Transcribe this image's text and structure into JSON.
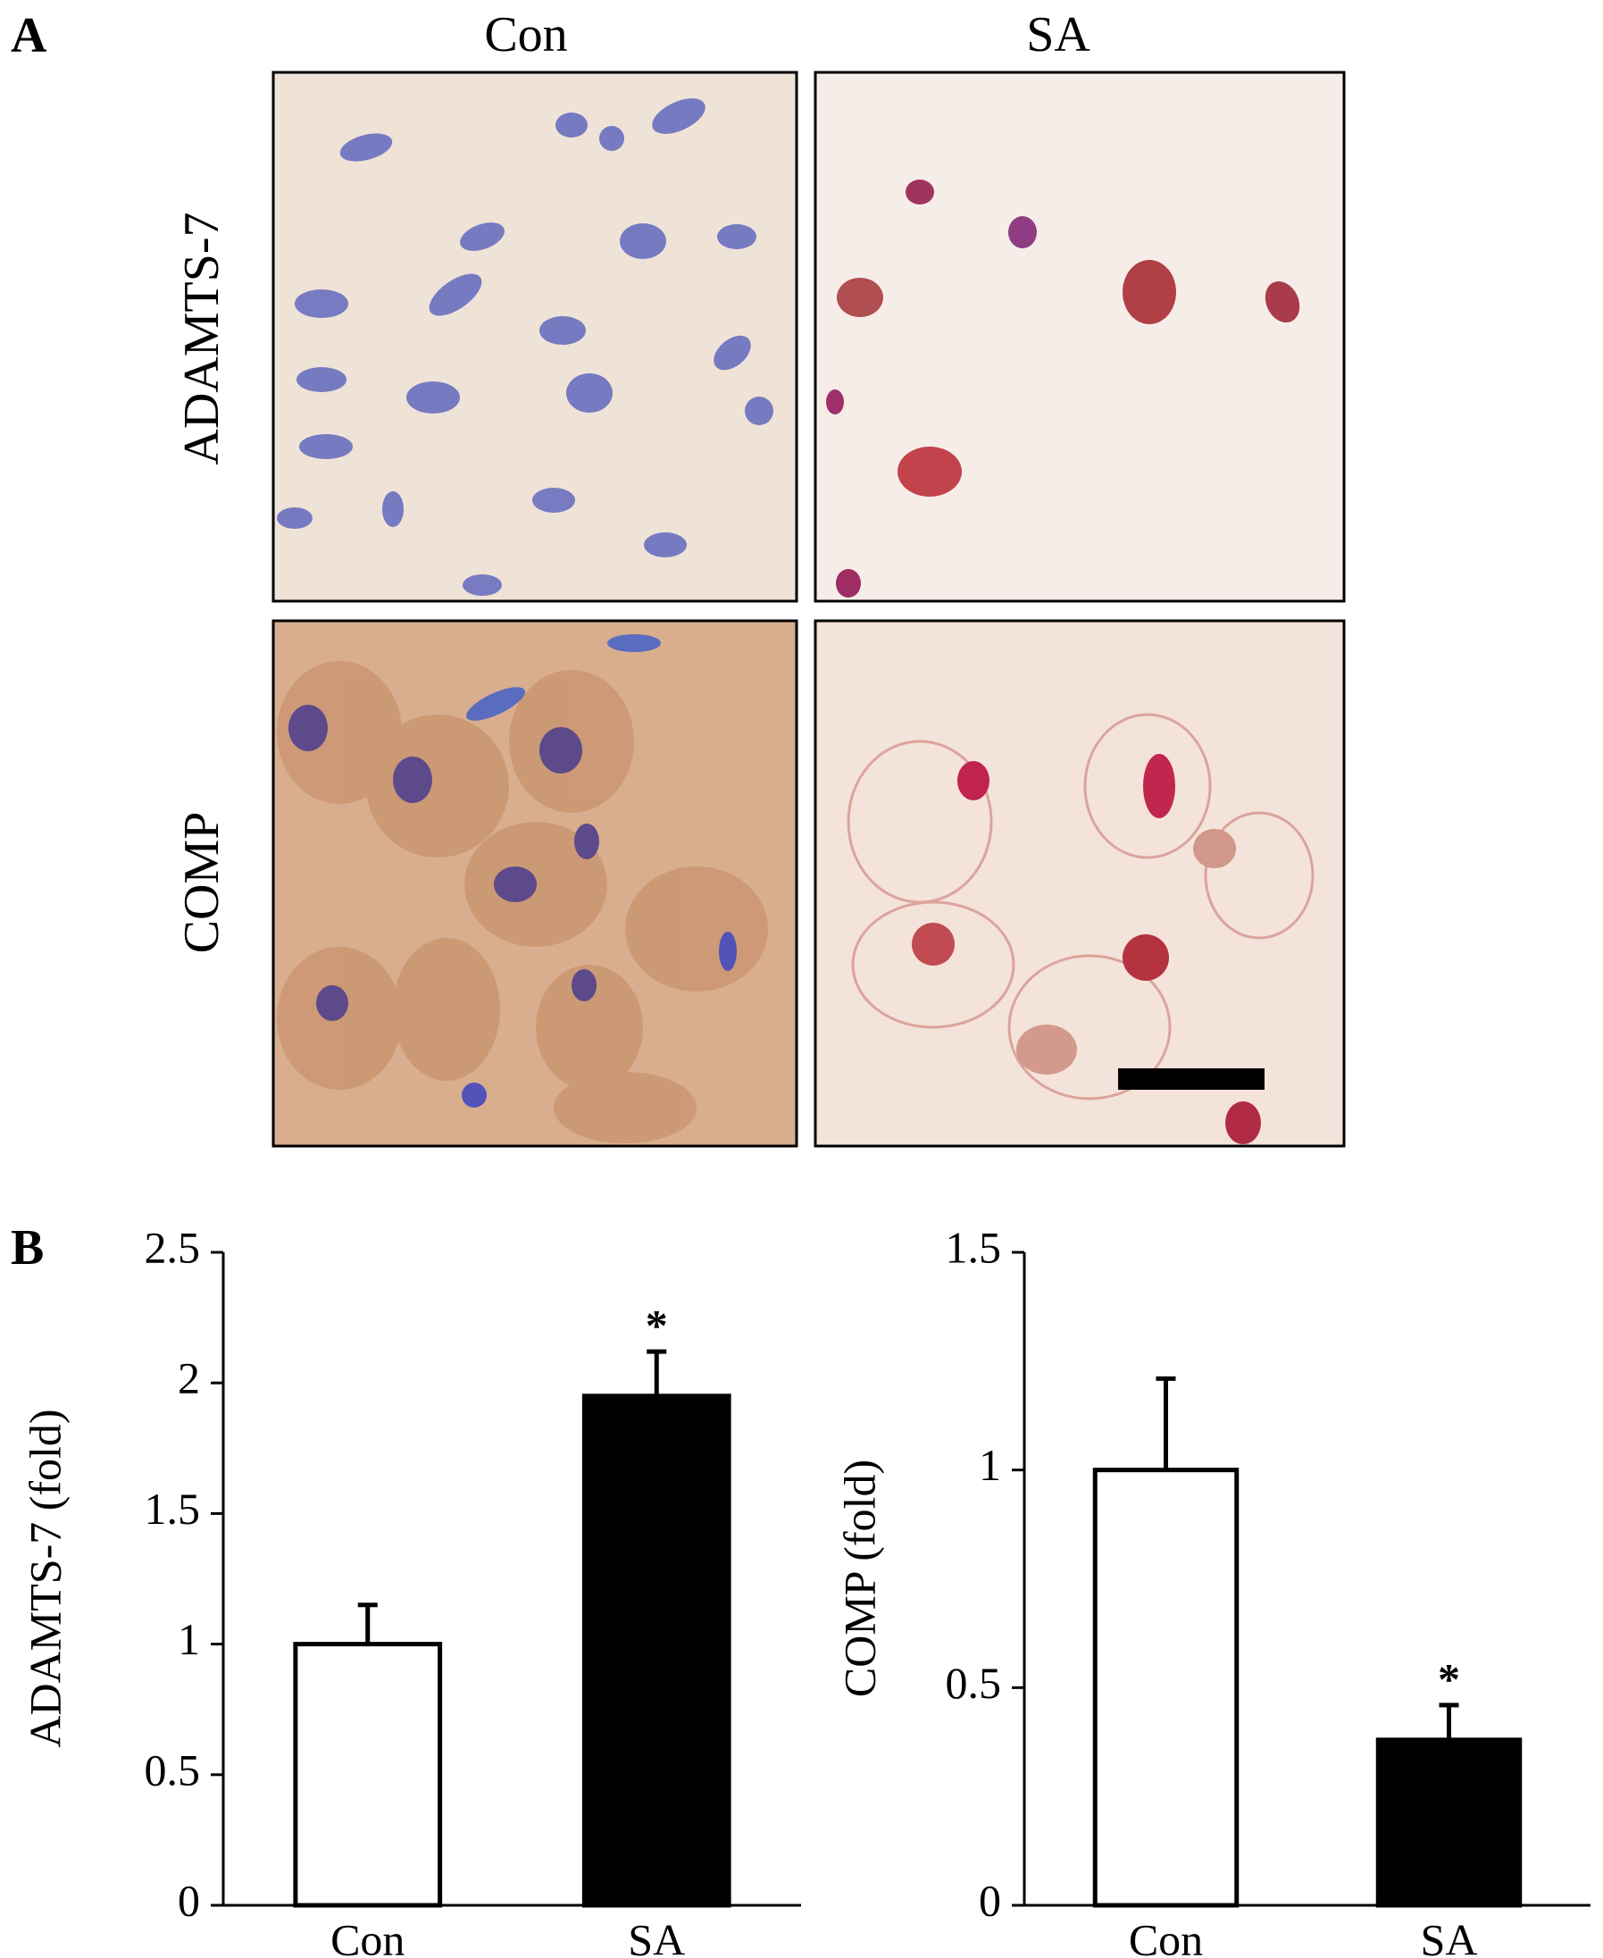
{
  "panel_a": {
    "label": "A",
    "columns": [
      "Con",
      "SA"
    ],
    "rows": [
      "ADAMTS-7",
      "COMP"
    ]
  },
  "panel_b": {
    "label": "B"
  },
  "chart_data": [
    {
      "type": "bar",
      "ylabel": "ADAMTS-7 (fold)",
      "categories": [
        "Con",
        "SA"
      ],
      "values": [
        1,
        1.95
      ],
      "errors": [
        0.15,
        0.17
      ],
      "colors": [
        "#ffffff",
        "#000000"
      ],
      "significance": [
        null,
        "*"
      ],
      "ylim": [
        0,
        2.5
      ],
      "yticks": [
        0,
        0.5,
        1,
        1.5,
        2,
        2.5
      ]
    },
    {
      "type": "bar",
      "ylabel": "COMP (fold)",
      "categories": [
        "Con",
        "SA"
      ],
      "values": [
        1,
        0.38
      ],
      "errors": [
        0.21,
        0.08
      ],
      "colors": [
        "#ffffff",
        "#000000"
      ],
      "significance": [
        null,
        "*"
      ],
      "ylim": [
        0,
        1.5
      ],
      "yticks": [
        0,
        0.5,
        1,
        1.5
      ]
    }
  ]
}
